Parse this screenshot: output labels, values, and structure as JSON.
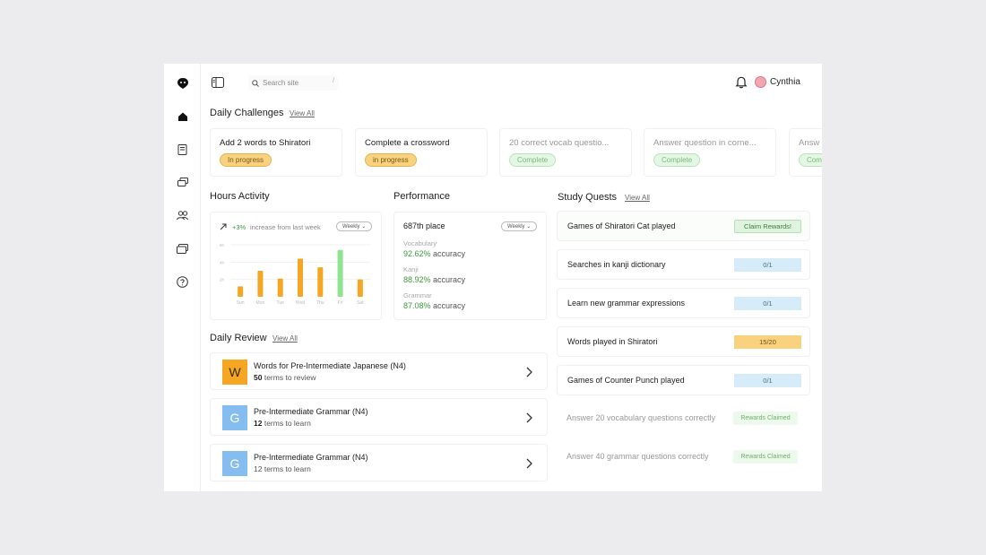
{
  "header": {
    "search_placeholder": "Search site",
    "search_shortcut": "/",
    "user_name": "Cynthia"
  },
  "daily_challenges": {
    "title": "Daily Challenges",
    "view_all": "View All",
    "items": [
      {
        "text": "Add 2 words to Shiratori",
        "status": "In progress"
      },
      {
        "text": "Complete a crossword",
        "status": "in progress"
      },
      {
        "text": "20 correct vocab questio...",
        "status": "Complete"
      },
      {
        "text": "Answer question in corne...",
        "status": "Complete"
      },
      {
        "text": "Answ",
        "status": "Com"
      }
    ]
  },
  "hours_activity": {
    "title": "Hours Activity",
    "trend": "+3%",
    "trend_text": "increase from last week",
    "period": "Weekly",
    "chart_data": {
      "type": "bar",
      "categories": [
        "Sun",
        "Mon",
        "Tue",
        "Wed",
        "Thu",
        "Fri",
        "Sat"
      ],
      "values": [
        1.2,
        3.0,
        2.1,
        4.4,
        3.4,
        5.4,
        2.0
      ],
      "highlight_index": 5,
      "y_ticks": [
        "6h",
        "4h",
        "2h"
      ],
      "ylim": [
        0,
        6
      ],
      "colors": {
        "bar": "#f5a623",
        "highlight": "#8fe38f"
      }
    }
  },
  "performance": {
    "title": "Performance",
    "place": "687th place",
    "period": "Weekly",
    "metrics": [
      {
        "label": "Vocabulary",
        "value": "92.62%",
        "suffix": "accuracy"
      },
      {
        "label": "Kanji",
        "value": "88.92%",
        "suffix": "accuracy"
      },
      {
        "label": "Grammar",
        "value": "87.08%",
        "suffix": "accuracy"
      }
    ]
  },
  "study_quests": {
    "title": "Study Quests",
    "view_all": "View All",
    "items": [
      {
        "name": "Games of Shiratori Cat played",
        "badge": "Claim Rewards!"
      },
      {
        "name": "Searches in kanji dictionary",
        "badge": "0/1"
      },
      {
        "name": "Learn new grammar expressions",
        "badge": "0/1"
      },
      {
        "name": "Words played in Shiratori",
        "badge": "15/20"
      },
      {
        "name": "Games of Counter Punch played",
        "badge": "0/1"
      },
      {
        "name": "Answer 20 vocabulary questions correctly",
        "badge": "Rewards Claimed"
      },
      {
        "name": "Answer 40 grammar questions correctly",
        "badge": "Rewards Claimed"
      }
    ]
  },
  "daily_review": {
    "title": "Daily Review",
    "view_all": "View All",
    "items": [
      {
        "letter": "W",
        "name": "Words for Pre-Intermediate Japanese (N4)",
        "count": "50",
        "suffix": "terms to review",
        "color": "#f5a623"
      },
      {
        "letter": "G",
        "name": "Pre-Intermediate Grammar (N4)",
        "count": "12",
        "suffix": "terms to learn",
        "color": "#86bdf0"
      },
      {
        "letter": "G",
        "name": "Pre-Intermediate Grammar (N4)",
        "count": "12",
        "suffix": "terms to learn",
        "color": "#86bdf0"
      }
    ]
  }
}
